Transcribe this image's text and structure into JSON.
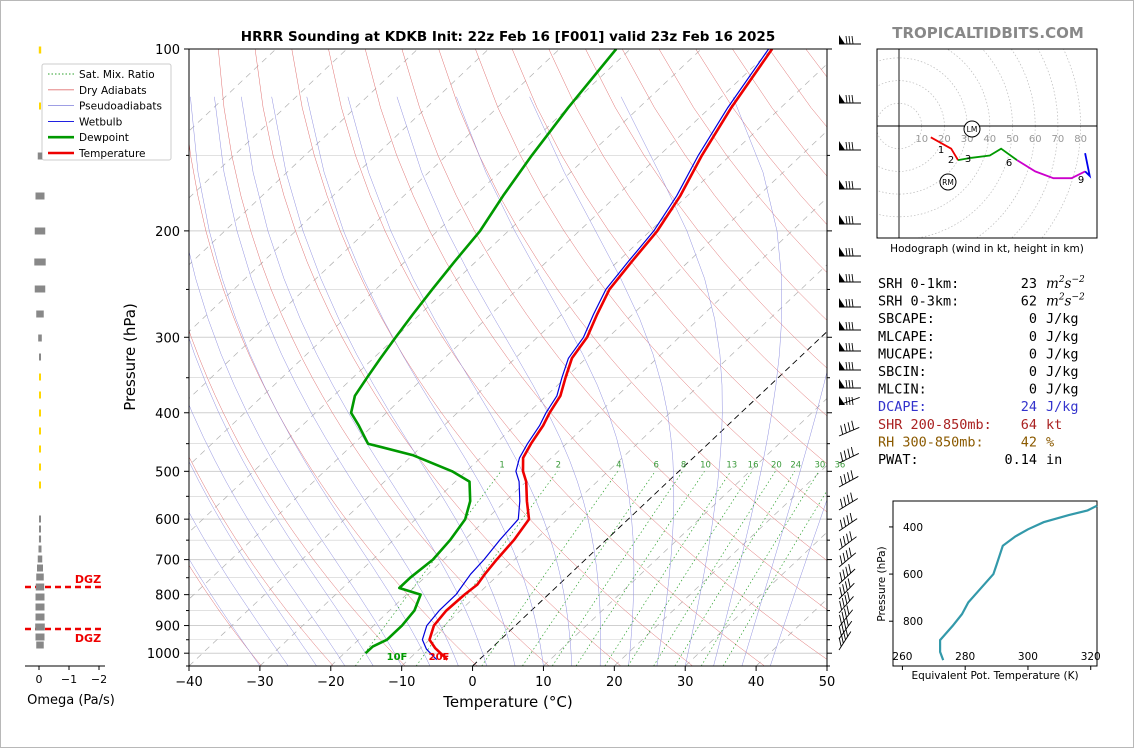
{
  "title": "HRRR Sounding at KDKB Init: 22z Feb 16 [F001] valid 23z Feb 16 2025",
  "brand": "TROPICALTIDBITS.COM",
  "skewt": {
    "xlabel": "Temperature (°C)",
    "ylabel": "Pressure (hPa)",
    "x_ticks": [
      "−40",
      "−30",
      "−20",
      "−10",
      "0",
      "10",
      "20",
      "30",
      "40",
      "50"
    ],
    "y_ticks": [
      "100",
      "200",
      "300",
      "400",
      "500",
      "600",
      "700",
      "800",
      "900",
      "1000"
    ],
    "mixing_ratio_labels": [
      "1",
      "2",
      "4",
      "6",
      "8",
      "10",
      "13",
      "16",
      "20",
      "24",
      "30",
      "36"
    ],
    "surface_dewpoint_label": "10F",
    "surface_temp_label": "20F"
  },
  "legend": {
    "placement": "top-left",
    "items": [
      {
        "label": "Sat. Mix. Ratio",
        "color": "#2ca02c",
        "style": "dotted"
      },
      {
        "label": "Dry Adiabats",
        "color": "#e07070",
        "style": "solid"
      },
      {
        "label": "Pseudoadiabats",
        "color": "#9090e0",
        "style": "solid"
      },
      {
        "label": "Wetbulb",
        "color": "#0000dd",
        "style": "solid"
      },
      {
        "label": "Dewpoint",
        "color": "#009900",
        "style": "solid"
      },
      {
        "label": "Temperature",
        "color": "#ee0000",
        "style": "solid"
      }
    ]
  },
  "omega": {
    "xlabel": "Omega (Pa/s)",
    "x_ticks": [
      "0",
      "−1",
      "−2"
    ],
    "dgz_label": "DGZ"
  },
  "hodograph": {
    "caption": "Hodograph (wind in kt, height in km)",
    "ring_labels": [
      "10",
      "20",
      "30",
      "40",
      "50",
      "60",
      "70",
      "80"
    ],
    "height_labels": [
      "1",
      "2",
      "3",
      "6",
      "9"
    ],
    "markers": [
      "LM",
      "RM"
    ]
  },
  "indices": [
    {
      "label": "SRH 0-1km:",
      "value": "23",
      "unit": "m2s-2",
      "color": "#000000"
    },
    {
      "label": "SRH 0-3km:",
      "value": "62",
      "unit": "m2s-2",
      "color": "#000000"
    },
    {
      "label": "SBCAPE:",
      "value": "0",
      "unit": "J/kg",
      "color": "#000000"
    },
    {
      "label": "MLCAPE:",
      "value": "0",
      "unit": "J/kg",
      "color": "#000000"
    },
    {
      "label": "MUCAPE:",
      "value": "0",
      "unit": "J/kg",
      "color": "#000000"
    },
    {
      "label": "SBCIN:",
      "value": "0",
      "unit": "J/kg",
      "color": "#000000"
    },
    {
      "label": "MLCIN:",
      "value": "0",
      "unit": "J/kg",
      "color": "#000000"
    },
    {
      "label": "DCAPE:",
      "value": "24",
      "unit": "J/kg",
      "color": "#3333cc"
    },
    {
      "label": "SHR 200-850mb:",
      "value": "64",
      "unit": "kt",
      "color": "#aa2222"
    },
    {
      "label": "RH 300-850mb:",
      "value": "42",
      "unit": "%",
      "color": "#8b5a00"
    },
    {
      "label": "PWAT:",
      "value": "0.14",
      "unit": "in",
      "color": "#000000"
    }
  ],
  "theta_e_panel": {
    "xlabel": "Equivalent Pot. Temperature (K)",
    "ylabel": "Pressure (hPa)",
    "x_ticks": [
      "260",
      "280",
      "300",
      "320"
    ],
    "y_ticks": [
      "400",
      "600",
      "800"
    ]
  },
  "chart_data": [
    {
      "type": "line",
      "title": "HRRR Sounding at KDKB Init: 22z Feb 16 [F001] valid 23z Feb 16 2025",
      "xlabel": "Temperature (°C)",
      "ylabel": "Pressure (hPa)",
      "xlim": [
        -40,
        50
      ],
      "ylim": [
        1050,
        100
      ],
      "y_scale": "log",
      "skew": true,
      "grid": true,
      "series": [
        {
          "name": "Temperature",
          "color": "#ee0000",
          "points": [
            [
              -4.5,
              1025
            ],
            [
              -8,
              980
            ],
            [
              -10,
              950
            ],
            [
              -11.5,
              900
            ],
            [
              -12,
              850
            ],
            [
              -11.8,
              800
            ],
            [
              -11.5,
              770
            ],
            [
              -12,
              740
            ],
            [
              -12.5,
              700
            ],
            [
              -13,
              650
            ],
            [
              -14,
              600
            ],
            [
              -17,
              560
            ],
            [
              -20,
              520
            ],
            [
              -22,
              500
            ],
            [
              -24,
              475
            ],
            [
              -25,
              450
            ],
            [
              -26,
              420
            ],
            [
              -27,
              400
            ],
            [
              -28,
              375
            ],
            [
              -30,
              350
            ],
            [
              -32,
              325
            ],
            [
              -33,
              300
            ],
            [
              -35,
              275
            ],
            [
              -37,
              250
            ],
            [
              -38,
              225
            ],
            [
              -39,
              200
            ],
            [
              -41,
              175
            ],
            [
              -44,
              150
            ],
            [
              -47,
              125
            ],
            [
              -50,
              100
            ]
          ]
        },
        {
          "name": "Wetbulb",
          "color": "#0000dd",
          "points": [
            [
              -6,
              1025
            ],
            [
              -9,
              985
            ],
            [
              -11,
              950
            ],
            [
              -12.5,
              900
            ],
            [
              -13,
              850
            ],
            [
              -13,
              800
            ],
            [
              -13.5,
              770
            ],
            [
              -14,
              740
            ],
            [
              -14.3,
              700
            ],
            [
              -15,
              650
            ],
            [
              -15.5,
              600
            ],
            [
              -18,
              560
            ],
            [
              -21,
              520
            ],
            [
              -23,
              500
            ],
            [
              -24.5,
              475
            ],
            [
              -25.5,
              450
            ],
            [
              -26.5,
              420
            ],
            [
              -27.5,
              400
            ],
            [
              -28.5,
              375
            ],
            [
              -30.5,
              350
            ],
            [
              -32.5,
              325
            ],
            [
              -33.5,
              300
            ],
            [
              -35.5,
              275
            ],
            [
              -37.5,
              250
            ],
            [
              -38.5,
              225
            ],
            [
              -39.5,
              200
            ],
            [
              -41.5,
              175
            ],
            [
              -44.5,
              150
            ],
            [
              -47.5,
              125
            ],
            [
              -50.5,
              100
            ]
          ]
        },
        {
          "name": "Dewpoint",
          "color": "#009900",
          "points": [
            [
              -17,
              1000
            ],
            [
              -17,
              975
            ],
            [
              -16,
              950
            ],
            [
              -16,
              900
            ],
            [
              -16.5,
              850
            ],
            [
              -18,
              800
            ],
            [
              -22,
              780
            ],
            [
              -22,
              750
            ],
            [
              -21.5,
              700
            ],
            [
              -22,
              650
            ],
            [
              -23,
              600
            ],
            [
              -25,
              560
            ],
            [
              -28,
              520
            ],
            [
              -32,
              500
            ],
            [
              -40,
              470
            ],
            [
              -48,
              450
            ],
            [
              -52,
              420
            ],
            [
              -55,
              400
            ],
            [
              -57,
              375
            ],
            [
              -58,
              350
            ],
            [
              -59,
              325
            ],
            [
              -60,
              300
            ],
            [
              -61,
              275
            ],
            [
              -62,
              250
            ],
            [
              -63,
              225
            ],
            [
              -64,
              200
            ],
            [
              -66,
              175
            ],
            [
              -68,
              150
            ],
            [
              -70,
              125
            ],
            [
              -72,
              100
            ]
          ]
        }
      ]
    },
    {
      "type": "line",
      "title": "Hodograph",
      "xlabel": "",
      "ylabel": "",
      "series": [
        {
          "name": "",
          "color": "#ee0000",
          "points": [
            [
              14,
              -5
            ],
            [
              23,
              -10
            ],
            [
              26,
              -15
            ]
          ]
        },
        {
          "name": "",
          "color": "#009900",
          "points": [
            [
              26,
              -15
            ],
            [
              32,
              -14
            ],
            [
              40,
              -13
            ],
            [
              45,
              -10
            ],
            [
              52,
              -15
            ]
          ]
        },
        {
          "name": "",
          "color": "#cc00cc",
          "points": [
            [
              52,
              -15
            ],
            [
              60,
              -20
            ],
            [
              68,
              -23
            ],
            [
              76,
              -23
            ],
            [
              82,
              -20
            ]
          ]
        },
        {
          "name": "",
          "color": "#0000ee",
          "points": [
            [
              82,
              -20
            ],
            [
              84,
              -22
            ],
            [
              82,
              -12
            ]
          ]
        }
      ]
    },
    {
      "type": "line",
      "title": "",
      "xlabel": "Equivalent Pot. Temperature (K)",
      "ylabel": "Pressure (hPa)",
      "xlim": [
        257,
        322
      ],
      "ylim": [
        990,
        290
      ],
      "series": [
        {
          "name": "",
          "color": "#3399aa",
          "points": [
            [
              273,
              965
            ],
            [
              272,
              930
            ],
            [
              272,
              880
            ],
            [
              276,
              820
            ],
            [
              279,
              770
            ],
            [
              281,
              720
            ],
            [
              285,
              660
            ],
            [
              289,
              600
            ],
            [
              290,
              560
            ],
            [
              291,
              520
            ],
            [
              292,
              480
            ],
            [
              296,
              440
            ],
            [
              300,
              410
            ],
            [
              305,
              380
            ],
            [
              313,
              350
            ],
            [
              319,
              330
            ],
            [
              323,
              310
            ]
          ]
        }
      ]
    }
  ]
}
